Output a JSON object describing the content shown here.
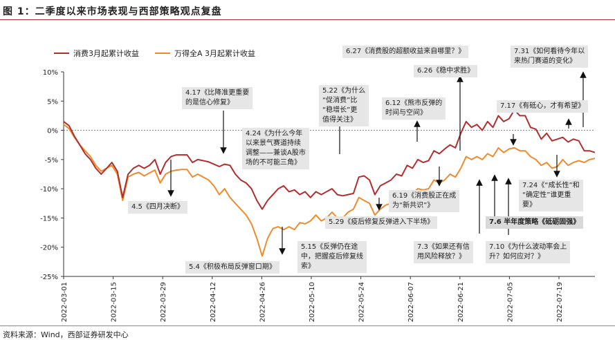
{
  "header": {
    "title": "图 1：二季度以来市场表现与西部策略观点复盘"
  },
  "footer": {
    "source": "资料来源：Wind，西部证券研发中心"
  },
  "colors": {
    "series1": "#b22d2d",
    "series2": "#f08a2c",
    "accent_rule": "#b02a2a",
    "annotation_bg": "#e6e6e6"
  },
  "chart_data": {
    "type": "line",
    "ylim": [
      -25,
      10
    ],
    "yticks": [
      -25,
      -20,
      -15,
      -10,
      -5,
      0,
      5,
      10
    ],
    "ytick_labels": [
      "-25%",
      "-20%",
      "-15%",
      "-10%",
      "-5%",
      "0%",
      "5%",
      "10%"
    ],
    "xtick_labels": [
      "2022-03-01",
      "2022-03-15",
      "2022-03-29",
      "2022-04-12",
      "2022-04-26",
      "2022-05-10",
      "2022-05-24",
      "2022-06-07",
      "2022-06-21",
      "2022-07-05",
      "2022-07-19"
    ],
    "legend": "top-left",
    "series": [
      {
        "name": "消费3月起累计收益",
        "values": [
          [
            0,
            1.5
          ],
          [
            1,
            0.8
          ],
          [
            2,
            -1.0
          ],
          [
            3,
            -2.5
          ],
          [
            4,
            -4.0
          ],
          [
            5,
            -5.0
          ],
          [
            6,
            -6.5
          ],
          [
            7,
            -7.5
          ],
          [
            8,
            -6.5
          ],
          [
            9,
            -5.5
          ],
          [
            10,
            -7
          ],
          [
            11,
            -11.5
          ],
          [
            12,
            -7.5
          ],
          [
            13,
            -6.5
          ],
          [
            14,
            -6
          ],
          [
            15,
            -6.5
          ],
          [
            16,
            -6
          ],
          [
            17,
            -5
          ],
          [
            18,
            -7.5
          ],
          [
            19,
            -5.5
          ],
          [
            20,
            -4.5
          ],
          [
            21,
            -4.2
          ],
          [
            22,
            -4.2
          ],
          [
            23,
            -4.2
          ],
          [
            24,
            -5.5
          ],
          [
            25,
            -5
          ],
          [
            26,
            -5.2
          ],
          [
            27,
            -5.4
          ],
          [
            28,
            -5.8
          ],
          [
            29,
            -6.2
          ],
          [
            30,
            -5.8
          ],
          [
            31,
            -6
          ],
          [
            32,
            -7.5
          ],
          [
            33,
            -8.5
          ],
          [
            34,
            -9
          ],
          [
            35,
            -10
          ],
          [
            36,
            -12
          ],
          [
            37,
            -13.5
          ],
          [
            38,
            -12
          ],
          [
            39,
            -11
          ],
          [
            40,
            -10
          ],
          [
            41,
            -9.5
          ],
          [
            42,
            -10.5
          ],
          [
            43,
            -10.2
          ],
          [
            44,
            -11
          ],
          [
            45,
            -10.5
          ],
          [
            46,
            -11.5
          ],
          [
            47,
            -10.5
          ],
          [
            48,
            -11
          ],
          [
            49,
            -10.5
          ],
          [
            50,
            -10
          ],
          [
            51,
            -11
          ],
          [
            52,
            -11.2
          ],
          [
            53,
            -11
          ],
          [
            54,
            -10.8
          ],
          [
            55,
            -8
          ],
          [
            56,
            -7.8
          ],
          [
            57,
            -8.5
          ],
          [
            58,
            -11
          ],
          [
            59,
            -9.5
          ],
          [
            60,
            -9
          ],
          [
            61,
            -8.5
          ],
          [
            62,
            -7.5
          ],
          [
            63,
            -7.8
          ],
          [
            64,
            -6
          ],
          [
            65,
            -6.5
          ],
          [
            66,
            -5
          ],
          [
            67,
            -5.5
          ],
          [
            68,
            -5.2
          ],
          [
            69,
            -3.5
          ],
          [
            70,
            -4
          ],
          [
            71,
            -3.2
          ],
          [
            72,
            -2.5
          ],
          [
            73,
            -3
          ],
          [
            74,
            -0.5
          ],
          [
            75,
            1.5
          ],
          [
            76,
            0.5
          ],
          [
            77,
            1
          ],
          [
            78,
            0
          ],
          [
            79,
            1.5
          ],
          [
            80,
            0.5
          ],
          [
            81,
            2.5
          ],
          [
            82,
            1.5
          ],
          [
            83,
            2
          ],
          [
            84,
            3.5
          ],
          [
            85,
            2.5
          ],
          [
            86,
            2.5
          ],
          [
            87,
            0.5
          ],
          [
            88,
            0.2
          ],
          [
            89,
            -1.5
          ],
          [
            90,
            -0.5
          ],
          [
            91,
            -1.8
          ],
          [
            92,
            -1.5
          ],
          [
            93,
            -1.2
          ],
          [
            94,
            -2
          ],
          [
            95,
            -1.5
          ],
          [
            96,
            -1.8
          ],
          [
            97,
            -3.5
          ],
          [
            98,
            -3.5
          ],
          [
            99,
            -3.8
          ]
        ]
      },
      {
        "name": "万得全A 3月起累计收益",
        "values": [
          [
            0,
            1.0
          ],
          [
            1,
            0.3
          ],
          [
            2,
            -1.2
          ],
          [
            3,
            -2.5
          ],
          [
            4,
            -3.5
          ],
          [
            5,
            -4.5
          ],
          [
            6,
            -6
          ],
          [
            7,
            -7
          ],
          [
            8,
            -6.5
          ],
          [
            9,
            -6
          ],
          [
            10,
            -7.5
          ],
          [
            11,
            -12
          ],
          [
            12,
            -8
          ],
          [
            13,
            -7.5
          ],
          [
            14,
            -7.2
          ],
          [
            15,
            -7.8
          ],
          [
            16,
            -7.3
          ],
          [
            17,
            -6.8
          ],
          [
            18,
            -9
          ],
          [
            19,
            -7.5
          ],
          [
            20,
            -7
          ],
          [
            21,
            -6.8
          ],
          [
            22,
            -6.7
          ],
          [
            23,
            -6.7
          ],
          [
            24,
            -8
          ],
          [
            25,
            -7.5
          ],
          [
            26,
            -8
          ],
          [
            27,
            -8.5
          ],
          [
            28,
            -9.5
          ],
          [
            29,
            -11
          ],
          [
            30,
            -10
          ],
          [
            31,
            -11.5
          ],
          [
            32,
            -12.5
          ],
          [
            33,
            -13.5
          ],
          [
            34,
            -14.5
          ],
          [
            35,
            -16
          ],
          [
            36,
            -18.5
          ],
          [
            37,
            -21.5
          ],
          [
            38,
            -18.5
          ],
          [
            39,
            -16.8
          ],
          [
            40,
            -16.5
          ],
          [
            41,
            -17
          ],
          [
            42,
            -16.5
          ],
          [
            43,
            -17
          ],
          [
            44,
            -15.8
          ],
          [
            45,
            -16
          ],
          [
            46,
            -15.5
          ],
          [
            47,
            -14.5
          ],
          [
            48,
            -15.5
          ],
          [
            49,
            -15
          ],
          [
            50,
            -14
          ],
          [
            51,
            -15
          ],
          [
            52,
            -15
          ],
          [
            53,
            -14
          ],
          [
            54,
            -13.5
          ],
          [
            55,
            -11.5
          ],
          [
            56,
            -12
          ],
          [
            57,
            -12.5
          ],
          [
            58,
            -14.5
          ],
          [
            59,
            -13.5
          ],
          [
            60,
            -12.8
          ],
          [
            61,
            -12.5
          ],
          [
            62,
            -11.8
          ],
          [
            63,
            -12
          ],
          [
            64,
            -10.5
          ],
          [
            65,
            -10.8
          ],
          [
            66,
            -10
          ],
          [
            67,
            -10.2
          ],
          [
            68,
            -10
          ],
          [
            69,
            -8.5
          ],
          [
            70,
            -9
          ],
          [
            71,
            -8.5
          ],
          [
            72,
            -7.5
          ],
          [
            73,
            -8
          ],
          [
            74,
            -6.5
          ],
          [
            75,
            -4.5
          ],
          [
            76,
            -5
          ],
          [
            77,
            -4.5
          ],
          [
            78,
            -5
          ],
          [
            79,
            -4
          ],
          [
            80,
            -4.5
          ],
          [
            81,
            -3
          ],
          [
            82,
            -3.8
          ],
          [
            83,
            -3.2
          ],
          [
            84,
            -3
          ],
          [
            85,
            -3.5
          ],
          [
            86,
            -3.5
          ],
          [
            87,
            -4.5
          ],
          [
            88,
            -5
          ],
          [
            89,
            -6
          ],
          [
            90,
            -5.5
          ],
          [
            91,
            -6.5
          ],
          [
            92,
            -6.2
          ],
          [
            93,
            -5
          ],
          [
            94,
            -6
          ],
          [
            95,
            -5.5
          ],
          [
            96,
            -5.2
          ],
          [
            97,
            -5.5
          ],
          [
            98,
            -5
          ],
          [
            99,
            -4.8
          ]
        ]
      }
    ],
    "annotations": [
      {
        "id": "a1",
        "lines": [
          "4.5《四月决断》"
        ]
      },
      {
        "id": "a2",
        "lines": [
          "4.17《比降准更重要",
          "的是信心修复》"
        ]
      },
      {
        "id": "a3",
        "lines": [
          "4.24《为什么今年",
          "以来景气赛道持续",
          "调整——兼谈A股市",
          "场的不可能三角》"
        ]
      },
      {
        "id": "a4",
        "lines": [
          "5.4《积极布局反弹窗口期》"
        ]
      },
      {
        "id": "a5",
        "lines": [
          "5.15《反弹仍在途",
          "中，把握疫后修复线",
          "索》"
        ]
      },
      {
        "id": "a6",
        "lines": [
          "5.22《为什么",
          "“促消费”比",
          "“稳增长”更",
          "值得关注》"
        ]
      },
      {
        "id": "a7",
        "lines": [
          "5.29《疫后修复反弹进入下半场》"
        ]
      },
      {
        "id": "a8",
        "lines": [
          "6.12《熊市反弹的",
          "时间与空间》"
        ]
      },
      {
        "id": "a9",
        "lines": [
          "6.19《消费股正在成",
          "为“新共识”》"
        ]
      },
      {
        "id": "a10",
        "lines": [
          "6.27《消费股的超额收益来自哪里？》"
        ]
      },
      {
        "id": "a11",
        "lines": [
          "6.26《稳中求胜》"
        ]
      },
      {
        "id": "a12",
        "lines": [
          "7.3《如果还有信",
          "用风险释放？》"
        ]
      },
      {
        "id": "a13",
        "lines": [
          "7.6 半年度策略《砥砺固强》"
        ]
      },
      {
        "id": "a14",
        "lines": [
          "7.10《为什么波动率会上",
          "升？如何应对？》"
        ]
      },
      {
        "id": "a15",
        "lines": [
          "7.17《有砥心，才有希望》"
        ]
      },
      {
        "id": "a16",
        "lines": [
          "7.24《“成长性”和",
          "“确定性”谁更重",
          "要》"
        ]
      },
      {
        "id": "a17",
        "lines": [
          "7.31《如何看待今年以",
          "来热门赛道的变化》"
        ]
      }
    ]
  }
}
